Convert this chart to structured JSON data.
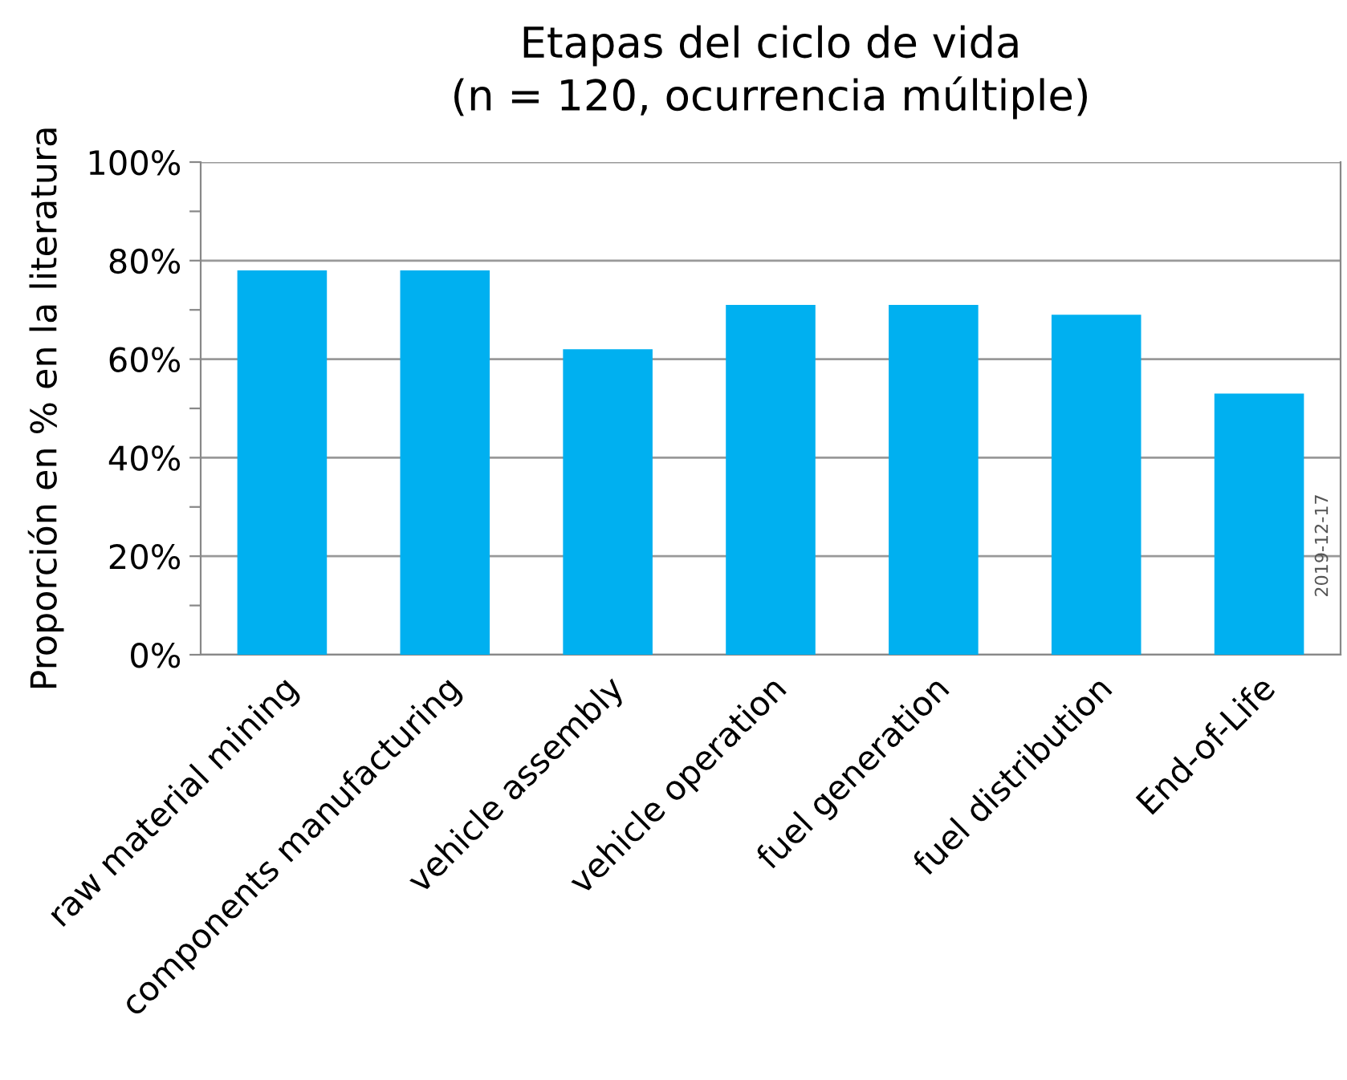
{
  "chart_data": {
    "type": "bar",
    "title": "Etapas del ciclo de vida\n(n = 120, ocurrencia múltiple)",
    "ylabel": "Proporción en % en la literatura",
    "categories": [
      "raw material mining",
      "components manufacturing",
      "vehicle assembly",
      "vehicle operation",
      "fuel generation",
      "fuel distribution",
      "End-of-Life"
    ],
    "values": [
      78,
      78,
      62,
      71,
      71,
      69,
      53
    ],
    "color": "#00b0f0",
    "ylim": [
      0,
      100
    ],
    "yticks": [
      {
        "value": 0,
        "label": "0%"
      },
      {
        "value": 10,
        "label": null
      },
      {
        "value": 20,
        "label": "20%"
      },
      {
        "value": 30,
        "label": null
      },
      {
        "value": 40,
        "label": "40%"
      },
      {
        "value": 50,
        "label": null
      },
      {
        "value": 60,
        "label": "60%"
      },
      {
        "value": 70,
        "label": null
      },
      {
        "value": 80,
        "label": "80%"
      },
      {
        "value": 90,
        "label": null
      },
      {
        "value": 100,
        "label": "100%"
      }
    ],
    "grid": "y",
    "annotations": [
      "2019-12-17"
    ]
  }
}
